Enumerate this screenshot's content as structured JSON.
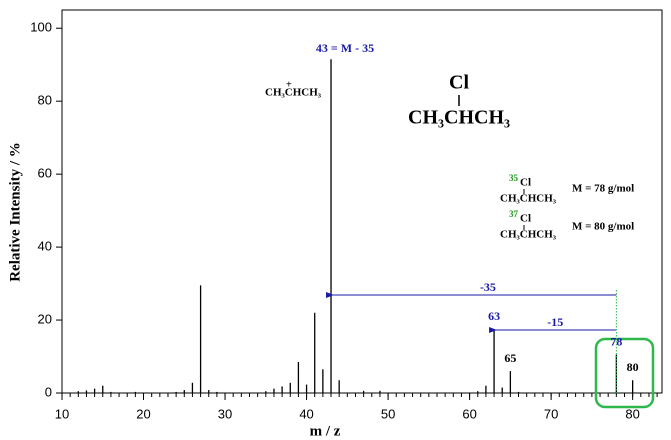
{
  "chart_data": {
    "type": "stick",
    "x_label": "m / z",
    "y_label": "Relative Intensity / %",
    "xlim": [
      10,
      83.6
    ],
    "xticks": [
      10,
      20,
      30,
      40,
      50,
      60,
      70,
      80
    ],
    "minor_tick_step": 1,
    "ylim": [
      0,
      105
    ],
    "yticks": [
      0,
      20,
      40,
      60,
      80,
      100
    ],
    "color": "#000000",
    "x": [
      12,
      13,
      14,
      15,
      16,
      19,
      24,
      25,
      26,
      27,
      28,
      29,
      35,
      36,
      37,
      38,
      39,
      40,
      41,
      42,
      43,
      44,
      47,
      49,
      61,
      62,
      63,
      64,
      65,
      66,
      78,
      80
    ],
    "values": [
      0.5,
      0.7,
      1.2,
      2,
      0.3,
      0.3,
      0.3,
      0.8,
      2.8,
      29.5,
      0.8,
      0.3,
      0.5,
      1.2,
      1.8,
      2.8,
      8.5,
      2.3,
      22,
      6.5,
      91.5,
      3.5,
      0.6,
      0.6,
      0.5,
      2,
      17.5,
      1.5,
      6,
      0.3,
      10.5,
      3.5
    ],
    "base_peak_label": {
      "text": "43 = M - 35",
      "x": 43
    },
    "peak_labels": [
      63,
      65,
      78,
      80
    ],
    "peak_label_colors": [
      "#1a1aaa",
      "#000000",
      "#1a1aaa",
      "#000000"
    ],
    "arrows": [
      {
        "label": "-35",
        "from": 78,
        "to": 43
      },
      {
        "label": "-15",
        "from": 78,
        "to": 63
      }
    ],
    "arrow_color": "#1a1aaa",
    "ion_label": "CH₃CHCH₃",
    "ion_charge": "+",
    "structure": {
      "top": "Cl",
      "bottom": "CH₃CHCH₃"
    },
    "isotopes": [
      {
        "mass": "35",
        "atom": "Cl",
        "chain": "CH₃CHCH₃",
        "molar_mass": "M = 78 g/mol"
      },
      {
        "mass": "37",
        "atom": "Cl",
        "chain": "CH₃CHCH₃",
        "molar_mass": "M = 80 g/mol"
      }
    ]
  }
}
